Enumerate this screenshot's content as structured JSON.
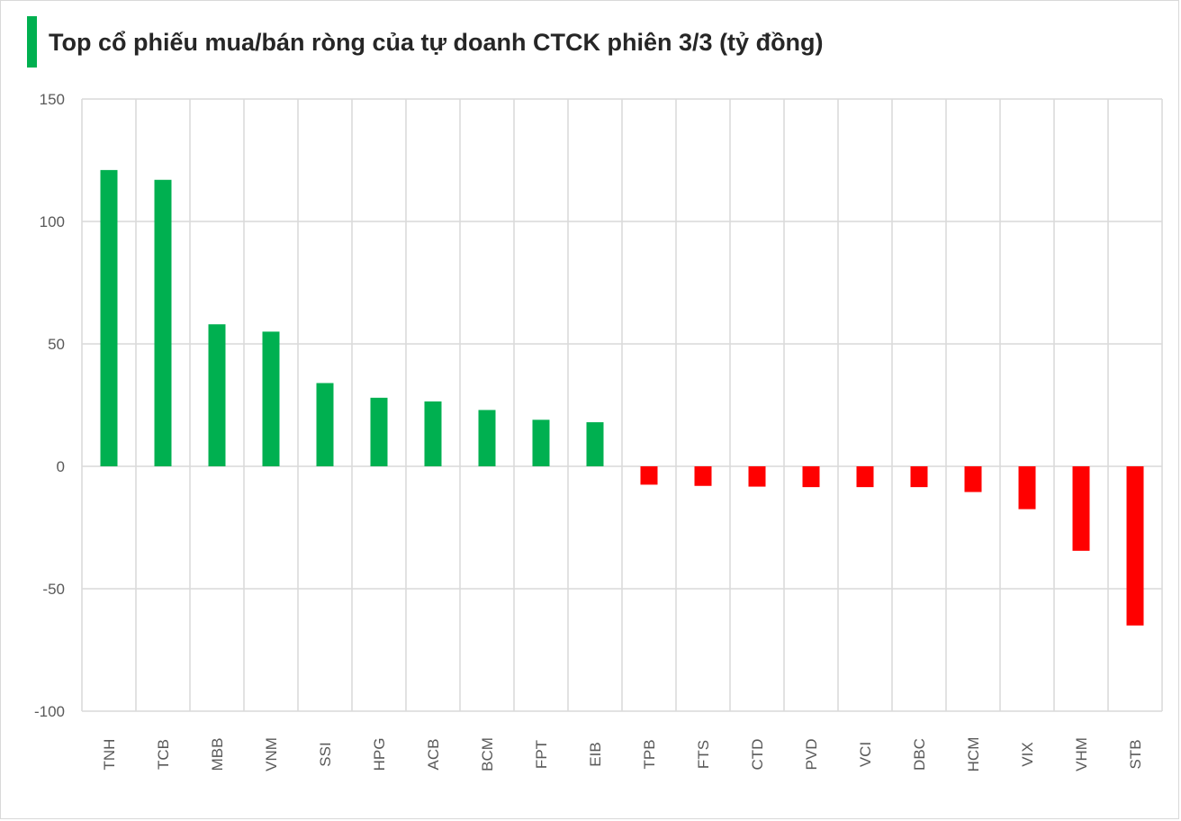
{
  "chart_data": {
    "type": "bar",
    "title": "Top cổ phiếu mua/bán ròng của tự doanh CTCK phiên 3/3 (tỷ đồng)",
    "categories": [
      "TNH",
      "TCB",
      "MBB",
      "VNM",
      "SSI",
      "HPG",
      "ACB",
      "BCM",
      "FPT",
      "EIB",
      "TPB",
      "FTS",
      "CTD",
      "PVD",
      "VCI",
      "DBC",
      "HCM",
      "VIX",
      "VHM",
      "STB"
    ],
    "values": [
      121,
      117,
      58,
      55,
      34,
      28,
      26.5,
      23,
      19,
      18,
      -7.5,
      -8,
      -8.3,
      -8.5,
      -8.5,
      -8.5,
      -10.5,
      -17.5,
      -34.5,
      -65
    ],
    "ylim": [
      -100,
      150
    ],
    "yticks": [
      150,
      100,
      50,
      0,
      -50,
      -100
    ],
    "ytick_labels": [
      "150",
      "100",
      "50",
      "0",
      "-50",
      "-100"
    ],
    "xlabel": "",
    "ylabel": "",
    "grid": true,
    "legend": "none",
    "colors": {
      "positive": "#00b050",
      "negative": "#ff0000",
      "grid": "#d9d9d9",
      "accent": "#00b050"
    }
  }
}
